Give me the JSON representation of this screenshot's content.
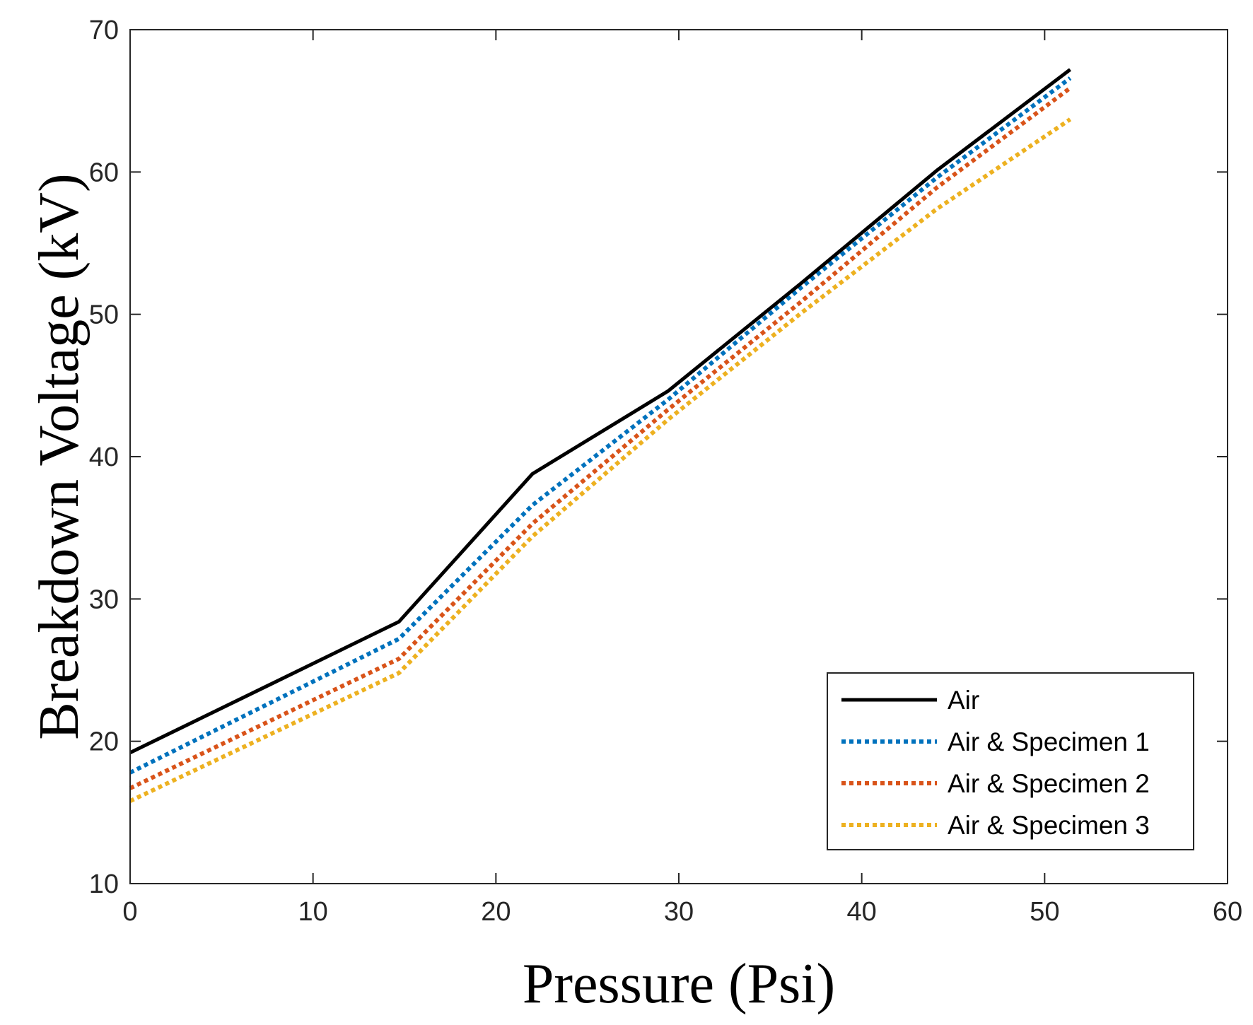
{
  "chart_data": {
    "type": "line",
    "title": "",
    "xlabel": "Pressure (Psi)",
    "ylabel": "Breakdown Voltage (kV)",
    "xlim": [
      0,
      60
    ],
    "ylim": [
      10,
      70
    ],
    "xticks": [
      0,
      10,
      20,
      30,
      40,
      50,
      60
    ],
    "yticks": [
      10,
      20,
      30,
      40,
      50,
      60,
      70
    ],
    "grid": false,
    "legend_position": "bottom-right",
    "x": [
      0,
      14.7,
      22,
      29.4,
      36.7,
      44.1,
      51.4
    ],
    "series": [
      {
        "name": "Air",
        "color": "#000000",
        "style": "solid",
        "values": [
          19.2,
          28.4,
          38.8,
          44.6,
          52.2,
          60.1,
          67.2
        ]
      },
      {
        "name": "Air & Specimen 1",
        "color": "#0072BD",
        "style": "dotted",
        "values": [
          17.8,
          27.2,
          36.6,
          44.0,
          51.9,
          59.6,
          66.6
        ]
      },
      {
        "name": "Air & Specimen 2",
        "color": "#D95319",
        "style": "dotted",
        "values": [
          16.7,
          25.8,
          35.3,
          43.3,
          50.9,
          58.9,
          65.9
        ]
      },
      {
        "name": "Air & Specimen 3",
        "color": "#EDB120",
        "style": "dotted",
        "values": [
          15.8,
          24.8,
          34.4,
          42.6,
          50.1,
          57.4,
          63.7
        ]
      }
    ]
  }
}
